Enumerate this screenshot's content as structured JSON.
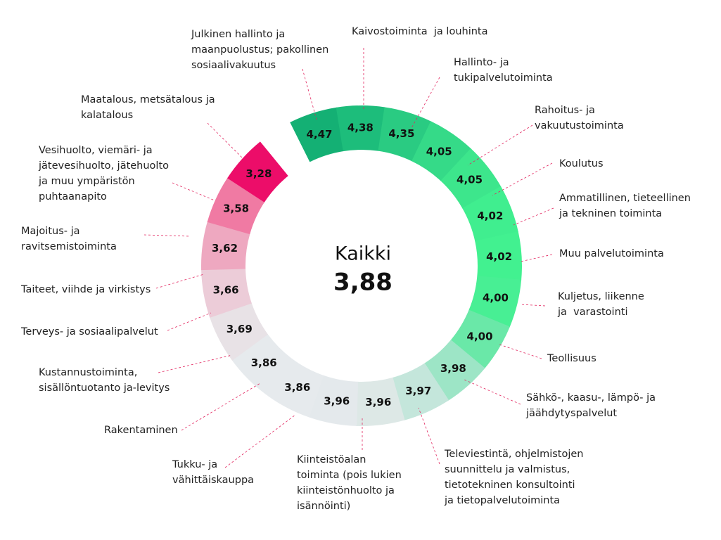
{
  "chart_data": {
    "type": "radial",
    "center_label": "Kaikki",
    "total": 3.88,
    "total_label": "3,88",
    "categories": [
      "Julkinen hallinto ja\nmaanpuolustus; pakollinen\nsosiaalivakuutus",
      "Kaivostoiminta  ja louhinta",
      "Hallinto- ja\ntukipalvelutoiminta",
      "Rahoitus- ja\nvakuutustoiminta",
      "Koulutus",
      "Ammatillinen, tieteellinen\nja tekninen toiminta",
      "Muu palvelutoiminta",
      "Kuljetus, liikenne\nja  varastointi",
      "Teollisuus",
      "Sähkö-, kaasu-, lämpö- ja\njäähdytyspalvelut",
      "Televiestintä, ohjelmistojen\nsuunnittelu ja valmistus,\ntietotekninen konsultointi\nja tietopalvelutoiminta",
      "Kiinteistöalan\ntoiminta (pois lukien\nkiinteistönhuolto ja\nisännöinti)",
      "Tukku- ja\nvähittäiskauppa",
      "Rakentaminen",
      "Kustannustoiminta,\nsisällöntuotanto ja-levitys",
      "Terveys- ja sosiaalipalvelut",
      "Taiteet, viihde ja virkistys",
      "Majoitus- ja\nravitsemistoiminta",
      "Vesihuolto, viemäri- ja\njätevesihuolto, jätehuolto\nja muu ympäristön\npuhtaanapito",
      "Maatalous, metsätalous ja\nkalatalous"
    ],
    "values": [
      4.47,
      4.38,
      4.35,
      4.05,
      4.05,
      4.02,
      4.02,
      4.0,
      4.0,
      3.98,
      3.97,
      3.96,
      3.96,
      3.86,
      3.86,
      3.69,
      3.66,
      3.62,
      3.58,
      3.28
    ],
    "value_labels": [
      "4,47",
      "4,38",
      "4,35",
      "4,05",
      "4,05",
      "4,02",
      "4,02",
      "4,00",
      "4,00",
      "3,98",
      "3,97",
      "3,96",
      "3,96",
      "3,86",
      "3,86",
      "3,69",
      "3,66",
      "3,62",
      "3,58",
      "3,28"
    ],
    "colors": [
      "#14b074",
      "#1dbd7b",
      "#2acb82",
      "#35da88",
      "#3de68c",
      "#40ee8f",
      "#42f190",
      "#48ef94",
      "#6ae8a8",
      "#9de5c6",
      "#c4e6db",
      "#dde8e6",
      "#e4e9ec",
      "#e6eaed",
      "#e6eaed",
      "#e8e2e6",
      "#ecccd8",
      "#eea8c0",
      "#f07aa3",
      "#ec0d69"
    ]
  }
}
